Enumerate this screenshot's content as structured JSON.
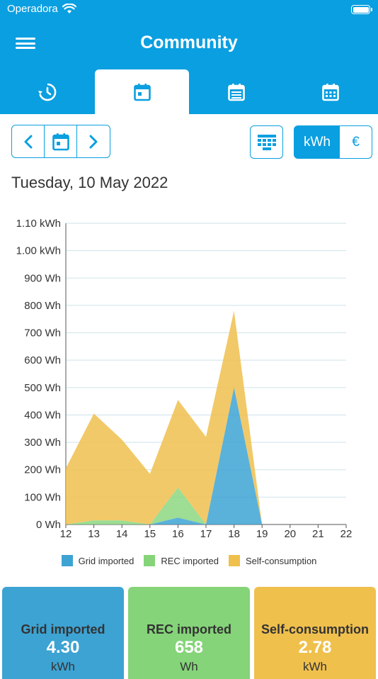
{
  "status_bar": {
    "carrier": "Operadora"
  },
  "header": {
    "title": "Community"
  },
  "tabs": [
    {
      "name": "history",
      "icon": "clock-refresh-icon",
      "active": false
    },
    {
      "name": "day",
      "icon": "calendar-day-icon",
      "active": true
    },
    {
      "name": "week",
      "icon": "calendar-list-icon",
      "active": false
    },
    {
      "name": "month",
      "icon": "calendar-grid-icon",
      "active": false
    }
  ],
  "unit_toggle": {
    "kwh_label": "kWh",
    "euro_label": "€",
    "selected": "kWh"
  },
  "date_label": "Tuesday, 10 May 2022",
  "colors": {
    "accent": "#0a9fe0",
    "grid_imported": "#3da3d3",
    "rec_imported": "#85d479",
    "self_consumption": "#f0c04d"
  },
  "chart_data": {
    "type": "area",
    "stacked": true,
    "x": [
      12,
      13,
      14,
      15,
      16,
      17,
      18,
      19,
      20,
      21,
      22
    ],
    "y_tick_labels": [
      "0 Wh",
      "100 Wh",
      "200 Wh",
      "300 Wh",
      "400 Wh",
      "500 Wh",
      "600 Wh",
      "700 Wh",
      "800 Wh",
      "900 Wh",
      "1.00 kWh",
      "1.10 kWh"
    ],
    "ylim": [
      0,
      1100
    ],
    "grid": true,
    "legend_position": "bottom",
    "series": [
      {
        "name": "Grid imported",
        "values": [
          0,
          0,
          0,
          0,
          25,
          0,
          500,
          0,
          0,
          0,
          0
        ]
      },
      {
        "name": "REC imported",
        "values": [
          0,
          15,
          15,
          0,
          110,
          0,
          0,
          0,
          0,
          0,
          0
        ]
      },
      {
        "name": "Self-consumption",
        "values": [
          205,
          390,
          295,
          185,
          320,
          320,
          280,
          0,
          0,
          0,
          0
        ]
      }
    ]
  },
  "legend": [
    "Grid imported",
    "REC imported",
    "Self-consumption"
  ],
  "summary_cards": [
    {
      "label": "Grid imported",
      "value": "4.30",
      "unit": "kWh"
    },
    {
      "label": "REC imported",
      "value": "658",
      "unit": "Wh"
    },
    {
      "label": "Self-consumption",
      "value": "2.78",
      "unit": "kWh"
    }
  ]
}
